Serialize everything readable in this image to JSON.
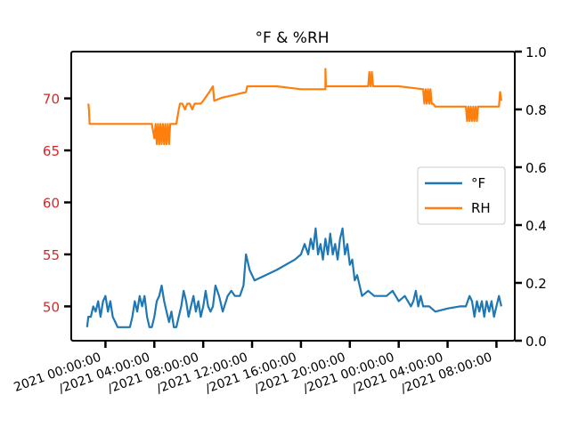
{
  "chart_data": {
    "type": "line",
    "title": "°F & %RH",
    "xlabel": "",
    "ylabel_left": "",
    "ylabel_right": "",
    "x_tick_labels": [
      "2021 00:00:00",
      "/2021 04:00:00",
      "/2021 08:00:00",
      "/2021 12:00:00",
      "/2021 16:00:00",
      "/2021 20:00:00",
      "/2021 00:00:00",
      "/2021 04:00:00",
      "/2021 08:00:00"
    ],
    "x_tick_hours": [
      0,
      4,
      8,
      12,
      16,
      20,
      24,
      28,
      32
    ],
    "xlim_hours": [
      -2.8,
      33.5
    ],
    "y_left": {
      "ylim": [
        46.7,
        74.5
      ],
      "ticks": [
        50,
        55,
        60,
        65,
        70
      ],
      "tick_color": "#d62728"
    },
    "y_right": {
      "ylim": [
        0.0,
        1.0
      ],
      "ticks": [
        "0.0",
        "0.2",
        "0.4",
        "0.6",
        "0.8",
        "1.0"
      ],
      "tick_color": "#000000"
    },
    "legend": {
      "position": "right",
      "entries": [
        "°F",
        "RH"
      ]
    },
    "grid": false,
    "series": [
      {
        "name": "°F",
        "color": "#1f77b4",
        "axis": "left",
        "points": [
          [
            -1.5,
            48.0
          ],
          [
            -1.4,
            49.0
          ],
          [
            -1.2,
            49.0
          ],
          [
            -1.0,
            50.0
          ],
          [
            -0.8,
            49.5
          ],
          [
            -0.6,
            50.5
          ],
          [
            -0.4,
            49.0
          ],
          [
            -0.2,
            50.5
          ],
          [
            0.0,
            51.0
          ],
          [
            0.2,
            49.5
          ],
          [
            0.4,
            50.5
          ],
          [
            0.6,
            49.0
          ],
          [
            0.8,
            48.5
          ],
          [
            1.0,
            48.0
          ],
          [
            1.5,
            48.0
          ],
          [
            2.0,
            48.0
          ],
          [
            2.2,
            49.0
          ],
          [
            2.4,
            50.5
          ],
          [
            2.6,
            49.5
          ],
          [
            2.8,
            51.0
          ],
          [
            3.0,
            50.0
          ],
          [
            3.2,
            51.0
          ],
          [
            3.4,
            49.0
          ],
          [
            3.6,
            48.0
          ],
          [
            3.8,
            48.0
          ],
          [
            4.0,
            49.0
          ],
          [
            4.2,
            50.5
          ],
          [
            4.4,
            51.0
          ],
          [
            4.6,
            52.0
          ],
          [
            4.8,
            50.5
          ],
          [
            5.0,
            49.5
          ],
          [
            5.2,
            48.5
          ],
          [
            5.4,
            49.5
          ],
          [
            5.6,
            48.0
          ],
          [
            5.8,
            48.0
          ],
          [
            6.0,
            49.0
          ],
          [
            6.2,
            50.0
          ],
          [
            6.4,
            51.5
          ],
          [
            6.6,
            50.5
          ],
          [
            6.8,
            49.0
          ],
          [
            7.0,
            50.0
          ],
          [
            7.2,
            51.0
          ],
          [
            7.4,
            49.5
          ],
          [
            7.6,
            50.5
          ],
          [
            7.8,
            49.0
          ],
          [
            8.0,
            50.0
          ],
          [
            8.2,
            51.5
          ],
          [
            8.4,
            50.0
          ],
          [
            8.6,
            49.5
          ],
          [
            8.8,
            50.0
          ],
          [
            9.0,
            52.0
          ],
          [
            9.3,
            51.0
          ],
          [
            9.6,
            49.5
          ],
          [
            10.0,
            51.0
          ],
          [
            10.3,
            51.5
          ],
          [
            10.6,
            51.0
          ],
          [
            11.0,
            51.0
          ],
          [
            11.3,
            52.0
          ],
          [
            11.5,
            55.0
          ],
          [
            11.8,
            53.5
          ],
          [
            12.2,
            52.5
          ],
          [
            14.0,
            53.5
          ],
          [
            15.5,
            54.5
          ],
          [
            16.0,
            55.0
          ],
          [
            16.3,
            56.0
          ],
          [
            16.6,
            55.0
          ],
          [
            16.8,
            56.5
          ],
          [
            17.0,
            55.5
          ],
          [
            17.2,
            57.5
          ],
          [
            17.4,
            55.0
          ],
          [
            17.6,
            56.0
          ],
          [
            17.8,
            54.5
          ],
          [
            18.0,
            56.5
          ],
          [
            18.2,
            55.0
          ],
          [
            18.4,
            57.0
          ],
          [
            18.6,
            55.0
          ],
          [
            18.8,
            56.0
          ],
          [
            19.0,
            54.5
          ],
          [
            19.2,
            56.5
          ],
          [
            19.4,
            57.5
          ],
          [
            19.6,
            55.0
          ],
          [
            19.8,
            56.0
          ],
          [
            20.0,
            54.0
          ],
          [
            20.2,
            54.5
          ],
          [
            20.4,
            52.5
          ],
          [
            20.6,
            53.0
          ],
          [
            20.8,
            52.0
          ],
          [
            21.0,
            51.0
          ],
          [
            21.5,
            51.5
          ],
          [
            22.0,
            51.0
          ],
          [
            23.0,
            51.0
          ],
          [
            23.5,
            51.5
          ],
          [
            24.0,
            50.5
          ],
          [
            24.5,
            51.0
          ],
          [
            25.0,
            50.0
          ],
          [
            25.2,
            50.5
          ],
          [
            25.4,
            51.5
          ],
          [
            25.6,
            50.0
          ],
          [
            25.8,
            51.0
          ],
          [
            26.0,
            50.0
          ],
          [
            26.5,
            50.0
          ],
          [
            27.0,
            49.5
          ],
          [
            28.0,
            49.8
          ],
          [
            29.0,
            50.0
          ],
          [
            29.5,
            50.0
          ],
          [
            29.8,
            51.0
          ],
          [
            30.0,
            50.5
          ],
          [
            30.2,
            49.0
          ],
          [
            30.4,
            50.5
          ],
          [
            30.6,
            49.5
          ],
          [
            30.8,
            50.5
          ],
          [
            31.0,
            49.0
          ],
          [
            31.2,
            50.5
          ],
          [
            31.4,
            49.5
          ],
          [
            31.6,
            50.5
          ],
          [
            31.8,
            49.0
          ],
          [
            32.0,
            50.0
          ],
          [
            32.2,
            51.0
          ],
          [
            32.4,
            50.0
          ]
        ]
      },
      {
        "name": "RH",
        "color": "#ff7f0e",
        "axis": "right",
        "points": [
          [
            -1.4,
            0.82
          ],
          [
            -1.35,
            0.8
          ],
          [
            -1.3,
            0.75
          ],
          [
            0.0,
            0.75
          ],
          [
            2.0,
            0.75
          ],
          [
            3.8,
            0.75
          ],
          [
            4.0,
            0.7
          ],
          [
            4.1,
            0.75
          ],
          [
            4.2,
            0.68
          ],
          [
            4.3,
            0.75
          ],
          [
            4.4,
            0.68
          ],
          [
            4.5,
            0.75
          ],
          [
            4.6,
            0.68
          ],
          [
            4.7,
            0.75
          ],
          [
            4.8,
            0.68
          ],
          [
            4.9,
            0.75
          ],
          [
            5.0,
            0.68
          ],
          [
            5.1,
            0.75
          ],
          [
            5.2,
            0.68
          ],
          [
            5.3,
            0.75
          ],
          [
            5.4,
            0.75
          ],
          [
            5.8,
            0.75
          ],
          [
            6.0,
            0.8
          ],
          [
            6.1,
            0.82
          ],
          [
            6.3,
            0.82
          ],
          [
            6.5,
            0.8
          ],
          [
            6.7,
            0.82
          ],
          [
            6.9,
            0.82
          ],
          [
            7.1,
            0.8
          ],
          [
            7.3,
            0.82
          ],
          [
            7.8,
            0.82
          ],
          [
            8.0,
            0.83
          ],
          [
            8.5,
            0.86
          ],
          [
            8.8,
            0.88
          ],
          [
            8.9,
            0.83
          ],
          [
            9.5,
            0.84
          ],
          [
            10.5,
            0.85
          ],
          [
            11.5,
            0.86
          ],
          [
            11.6,
            0.88
          ],
          [
            11.8,
            0.88
          ],
          [
            12.0,
            0.88
          ],
          [
            14.0,
            0.88
          ],
          [
            16.0,
            0.87
          ],
          [
            17.5,
            0.87
          ],
          [
            18.0,
            0.87
          ],
          [
            18.0,
            0.94
          ],
          [
            18.05,
            0.88
          ],
          [
            21.5,
            0.88
          ],
          [
            21.6,
            0.93
          ],
          [
            21.7,
            0.88
          ],
          [
            21.8,
            0.93
          ],
          [
            21.9,
            0.88
          ],
          [
            24.0,
            0.88
          ],
          [
            26.0,
            0.87
          ],
          [
            26.1,
            0.82
          ],
          [
            26.2,
            0.87
          ],
          [
            26.3,
            0.82
          ],
          [
            26.4,
            0.87
          ],
          [
            26.5,
            0.82
          ],
          [
            26.6,
            0.87
          ],
          [
            26.7,
            0.82
          ],
          [
            26.8,
            0.82
          ],
          [
            27.0,
            0.81
          ],
          [
            28.0,
            0.81
          ],
          [
            29.0,
            0.81
          ],
          [
            29.5,
            0.81
          ],
          [
            29.6,
            0.76
          ],
          [
            29.7,
            0.81
          ],
          [
            29.8,
            0.76
          ],
          [
            29.9,
            0.81
          ],
          [
            30.0,
            0.76
          ],
          [
            30.1,
            0.81
          ],
          [
            30.2,
            0.76
          ],
          [
            30.3,
            0.81
          ],
          [
            30.4,
            0.76
          ],
          [
            30.5,
            0.81
          ],
          [
            31.0,
            0.81
          ],
          [
            32.0,
            0.81
          ],
          [
            32.2,
            0.81
          ],
          [
            32.3,
            0.86
          ],
          [
            32.4,
            0.83
          ]
        ]
      }
    ]
  }
}
